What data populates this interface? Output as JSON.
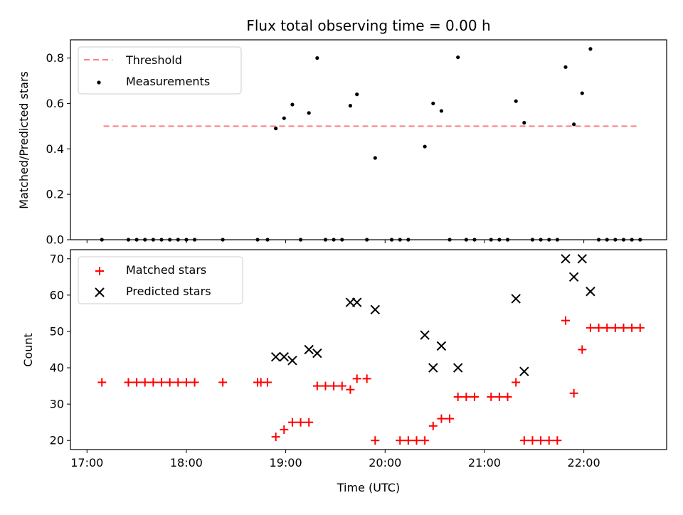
{
  "chart_data": [
    {
      "type": "scatter",
      "title": "Flux total observing time = 0.00 h",
      "xlabel": "",
      "ylabel": "Matched/Predicted stars",
      "xlim": [
        "16:50",
        "22:50"
      ],
      "ylim": [
        0,
        0.88
      ],
      "yticks": [
        0.0,
        0.2,
        0.4,
        0.6,
        0.8
      ],
      "ytick_labels": [
        "0.0",
        "0.2",
        "0.4",
        "0.6",
        "0.8"
      ],
      "legend": {
        "placement": "top-left",
        "entries": [
          "Threshold",
          "Measurements"
        ]
      },
      "grid": false,
      "threshold": {
        "name": "Threshold",
        "y": 0.5,
        "x_start": "17:10",
        "x_end": "22:32",
        "color": "#ff7f7f",
        "style": "dashed"
      },
      "series": [
        {
          "name": "Measurements",
          "color": "#000000",
          "marker": "dot",
          "points": [
            [
              "17:09",
              0
            ],
            [
              "17:25",
              0
            ],
            [
              "17:30",
              0
            ],
            [
              "17:35",
              0
            ],
            [
              "17:40",
              0
            ],
            [
              "17:45",
              0
            ],
            [
              "17:50",
              0
            ],
            [
              "17:55",
              0
            ],
            [
              "18:00",
              0
            ],
            [
              "18:05",
              0
            ],
            [
              "18:22",
              0
            ],
            [
              "18:43",
              0
            ],
            [
              "18:49",
              0
            ],
            [
              "18:54",
              0.49
            ],
            [
              "18:59",
              0.535
            ],
            [
              "19:04",
              0.595
            ],
            [
              "19:09",
              0
            ],
            [
              "19:14",
              0.558
            ],
            [
              "19:19",
              0.8
            ],
            [
              "19:24",
              0
            ],
            [
              "19:29",
              0
            ],
            [
              "19:34",
              0
            ],
            [
              "19:39",
              0.59
            ],
            [
              "19:43",
              0.64
            ],
            [
              "19:49",
              0
            ],
            [
              "19:54",
              0.36
            ],
            [
              "20:04",
              0
            ],
            [
              "20:09",
              0
            ],
            [
              "20:14",
              0
            ],
            [
              "20:24",
              0.41
            ],
            [
              "20:29",
              0.6
            ],
            [
              "20:34",
              0.567
            ],
            [
              "20:39",
              0
            ],
            [
              "20:44",
              0.803
            ],
            [
              "20:49",
              0
            ],
            [
              "20:54",
              0
            ],
            [
              "21:04",
              0
            ],
            [
              "21:09",
              0
            ],
            [
              "21:14",
              0
            ],
            [
              "21:19",
              0.61
            ],
            [
              "21:24",
              0.515
            ],
            [
              "21:29",
              0
            ],
            [
              "21:34",
              0
            ],
            [
              "21:39",
              0
            ],
            [
              "21:44",
              0
            ],
            [
              "21:49",
              0.76
            ],
            [
              "21:54",
              0.508
            ],
            [
              "21:59",
              0.645
            ],
            [
              "22:04",
              0.84
            ],
            [
              "22:09",
              0
            ],
            [
              "22:14",
              0
            ],
            [
              "22:19",
              0
            ],
            [
              "22:24",
              0
            ],
            [
              "22:29",
              0
            ],
            [
              "22:34",
              0
            ]
          ]
        }
      ]
    },
    {
      "type": "scatter",
      "title": "",
      "xlabel": "Time (UTC)",
      "ylabel": "Count",
      "xlim": [
        "16:50",
        "22:50"
      ],
      "ylim": [
        17.5,
        72.5
      ],
      "yticks": [
        20,
        30,
        40,
        50,
        60,
        70
      ],
      "ytick_labels": [
        "20",
        "30",
        "40",
        "50",
        "60",
        "70"
      ],
      "xticks": [
        "17:00",
        "18:00",
        "19:00",
        "20:00",
        "21:00",
        "22:00"
      ],
      "xtick_labels": [
        "17:00",
        "18:00",
        "19:00",
        "20:00",
        "21:00",
        "22:00"
      ],
      "legend": {
        "placement": "top-left",
        "entries": [
          "Matched stars",
          "Predicted stars"
        ]
      },
      "grid": false,
      "series": [
        {
          "name": "Matched stars",
          "color": "#ff0000",
          "marker": "plus",
          "points": [
            [
              "17:09",
              36
            ],
            [
              "17:25",
              36
            ],
            [
              "17:30",
              36
            ],
            [
              "17:35",
              36
            ],
            [
              "17:40",
              36
            ],
            [
              "17:45",
              36
            ],
            [
              "17:50",
              36
            ],
            [
              "17:55",
              36
            ],
            [
              "18:00",
              36
            ],
            [
              "18:05",
              36
            ],
            [
              "18:22",
              36
            ],
            [
              "18:43",
              36
            ],
            [
              "18:45",
              36
            ],
            [
              "18:49",
              36
            ],
            [
              "18:54",
              21
            ],
            [
              "18:59",
              23
            ],
            [
              "19:04",
              25
            ],
            [
              "19:09",
              25
            ],
            [
              "19:14",
              25
            ],
            [
              "19:19",
              35
            ],
            [
              "19:24",
              35
            ],
            [
              "19:29",
              35
            ],
            [
              "19:34",
              35
            ],
            [
              "19:39",
              34
            ],
            [
              "19:43",
              37
            ],
            [
              "19:49",
              37
            ],
            [
              "19:54",
              20
            ],
            [
              "20:09",
              20
            ],
            [
              "20:14",
              20
            ],
            [
              "20:19",
              20
            ],
            [
              "20:24",
              20
            ],
            [
              "20:29",
              24
            ],
            [
              "20:34",
              26
            ],
            [
              "20:39",
              26
            ],
            [
              "20:44",
              32
            ],
            [
              "20:49",
              32
            ],
            [
              "20:54",
              32
            ],
            [
              "21:04",
              32
            ],
            [
              "21:09",
              32
            ],
            [
              "21:14",
              32
            ],
            [
              "21:19",
              36
            ],
            [
              "21:24",
              20
            ],
            [
              "21:29",
              20
            ],
            [
              "21:34",
              20
            ],
            [
              "21:39",
              20
            ],
            [
              "21:44",
              20
            ],
            [
              "21:49",
              53
            ],
            [
              "21:54",
              33
            ],
            [
              "21:59",
              45
            ],
            [
              "22:04",
              51
            ],
            [
              "22:09",
              51
            ],
            [
              "22:14",
              51
            ],
            [
              "22:19",
              51
            ],
            [
              "22:24",
              51
            ],
            [
              "22:29",
              51
            ],
            [
              "22:34",
              51
            ]
          ]
        },
        {
          "name": "Predicted stars",
          "color": "#000000",
          "marker": "x",
          "points": [
            [
              "18:54",
              43
            ],
            [
              "18:59",
              43
            ],
            [
              "19:04",
              42
            ],
            [
              "19:14",
              45
            ],
            [
              "19:19",
              44
            ],
            [
              "19:39",
              58
            ],
            [
              "19:43",
              58
            ],
            [
              "19:54",
              56
            ],
            [
              "20:24",
              49
            ],
            [
              "20:29",
              40
            ],
            [
              "20:34",
              46
            ],
            [
              "20:44",
              40
            ],
            [
              "21:19",
              59
            ],
            [
              "21:24",
              39
            ],
            [
              "21:49",
              70
            ],
            [
              "21:54",
              65
            ],
            [
              "21:59",
              70
            ],
            [
              "22:04",
              61
            ]
          ]
        }
      ]
    }
  ]
}
